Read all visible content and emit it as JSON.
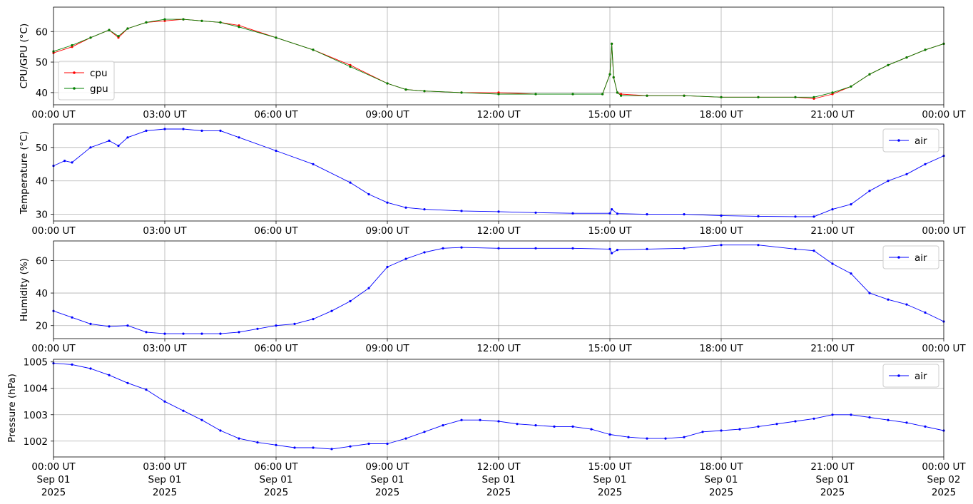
{
  "x_ticks": [
    {
      "time": "00:00 UT",
      "date": "Sep 01",
      "year": "2025"
    },
    {
      "time": "03:00 UT",
      "date": "Sep 01",
      "year": "2025"
    },
    {
      "time": "06:00 UT",
      "date": "Sep 01",
      "year": "2025"
    },
    {
      "time": "09:00 UT",
      "date": "Sep 01",
      "year": "2025"
    },
    {
      "time": "12:00 UT",
      "date": "Sep 01",
      "year": "2025"
    },
    {
      "time": "15:00 UT",
      "date": "Sep 01",
      "year": "2025"
    },
    {
      "time": "18:00 UT",
      "date": "Sep 01",
      "year": "2025"
    },
    {
      "time": "21:00 UT",
      "date": "Sep 01",
      "year": "2025"
    },
    {
      "time": "00:00 UT",
      "date": "Sep 02",
      "year": "2025"
    }
  ],
  "chart_data": [
    {
      "type": "line",
      "title": "",
      "xlabel": "",
      "ylabel": "CPU/GPU (°C)",
      "x_unit": "hours UT since 2025-09-01 00:00",
      "xlim": [
        0,
        24
      ],
      "ylim": [
        36,
        68
      ],
      "yticks": [
        40,
        50,
        60
      ],
      "grid": true,
      "legend": "lower-left",
      "series": [
        {
          "name": "cpu",
          "color": "#ff0000",
          "x": [
            0,
            0.5,
            1,
            1.5,
            1.75,
            2,
            2.5,
            3,
            3.5,
            4,
            4.5,
            5,
            6,
            7,
            8,
            9,
            9.5,
            10,
            11,
            12,
            13,
            14,
            14.8,
            15,
            15.05,
            15.1,
            15.2,
            15.3,
            16,
            17,
            18,
            19,
            20,
            20.5,
            21,
            21.5,
            22,
            22.5,
            23,
            23.5,
            24
          ],
          "y": [
            53,
            55,
            58,
            60.5,
            58,
            61,
            63,
            63.5,
            64,
            63.5,
            63,
            62,
            58,
            54,
            49,
            43,
            41,
            40.5,
            40,
            40,
            39.5,
            39.5,
            39.5,
            46,
            56,
            45,
            40,
            39.5,
            39,
            39,
            38.5,
            38.5,
            38.5,
            38,
            39.5,
            42,
            46,
            49,
            51.5,
            54,
            56
          ]
        },
        {
          "name": "gpu",
          "color": "#008000",
          "x": [
            0,
            0.5,
            1,
            1.5,
            1.75,
            2,
            2.5,
            3,
            3.5,
            4,
            4.5,
            5,
            6,
            7,
            8,
            9,
            9.5,
            10,
            11,
            12,
            13,
            14,
            14.8,
            15,
            15.05,
            15.1,
            15.2,
            15.3,
            16,
            17,
            18,
            19,
            20,
            20.5,
            21,
            21.5,
            22,
            22.5,
            23,
            23.5,
            24
          ],
          "y": [
            53.5,
            55.5,
            58,
            60.5,
            58.5,
            61,
            63,
            64,
            64,
            63.5,
            63,
            61.5,
            58,
            54,
            48.5,
            43,
            41,
            40.5,
            40,
            39.5,
            39.5,
            39.5,
            39.5,
            46,
            56,
            45,
            40,
            39,
            39,
            39,
            38.5,
            38.5,
            38.5,
            38.5,
            40,
            42,
            46,
            49,
            51.5,
            54,
            56
          ]
        }
      ]
    },
    {
      "type": "line",
      "title": "",
      "xlabel": "",
      "ylabel": "Temperature (°C)",
      "x_unit": "hours UT since 2025-09-01 00:00",
      "xlim": [
        0,
        24
      ],
      "ylim": [
        28,
        57
      ],
      "yticks": [
        30,
        40,
        50
      ],
      "grid": true,
      "legend": "upper-right",
      "series": [
        {
          "name": "air",
          "color": "#0000ff",
          "x": [
            0,
            0.3,
            0.5,
            1,
            1.5,
            1.75,
            2,
            2.5,
            3,
            3.5,
            4,
            4.5,
            5,
            6,
            7,
            8,
            8.5,
            9,
            9.5,
            10,
            11,
            12,
            13,
            14,
            15,
            15.05,
            15.2,
            16,
            17,
            18,
            19,
            20,
            20.5,
            21,
            21.5,
            22,
            22.5,
            23,
            23.5,
            24
          ],
          "y": [
            44.5,
            46,
            45.5,
            50,
            52,
            50.5,
            53,
            55,
            55.5,
            55.5,
            55,
            55,
            53,
            49,
            45,
            39.5,
            36,
            33.5,
            32,
            31.5,
            31,
            30.8,
            30.5,
            30.3,
            30.3,
            31.5,
            30.2,
            30,
            30,
            29.6,
            29.4,
            29.3,
            29.3,
            31.5,
            33,
            37,
            40,
            42,
            45,
            47.5
          ]
        }
      ]
    },
    {
      "type": "line",
      "title": "",
      "xlabel": "",
      "ylabel": "Humidity (%)",
      "x_unit": "hours UT since 2025-09-01 00:00",
      "xlim": [
        0,
        24
      ],
      "ylim": [
        12,
        72
      ],
      "yticks": [
        20,
        40,
        60
      ],
      "grid": true,
      "legend": "upper-right",
      "series": [
        {
          "name": "air",
          "color": "#0000ff",
          "x": [
            0,
            0.5,
            1,
            1.5,
            2,
            2.5,
            3,
            3.5,
            4,
            4.5,
            5,
            5.5,
            6,
            6.5,
            7,
            7.5,
            8,
            8.5,
            9,
            9.5,
            10,
            10.5,
            11,
            12,
            13,
            14,
            15,
            15.05,
            15.2,
            16,
            17,
            18,
            19,
            20,
            20.5,
            21,
            21.5,
            22,
            22.5,
            23,
            23.5,
            24
          ],
          "y": [
            29,
            25,
            21,
            19.5,
            20,
            16,
            15,
            15,
            15,
            15,
            16,
            18,
            20,
            21,
            24,
            29,
            35,
            43,
            56,
            61,
            65,
            67.5,
            68,
            67.5,
            67.5,
            67.5,
            67,
            64.5,
            66.5,
            67,
            67.5,
            69.5,
            69.5,
            67,
            66,
            58,
            52,
            40,
            36,
            33,
            28,
            22.5
          ]
        }
      ]
    },
    {
      "type": "line",
      "title": "",
      "xlabel": "",
      "ylabel": "Pressure (hPa)",
      "x_unit": "hours UT since 2025-09-01 00:00",
      "xlim": [
        0,
        24
      ],
      "ylim": [
        1001.4,
        1005.1
      ],
      "yticks": [
        1002,
        1003,
        1004,
        1005
      ],
      "grid": true,
      "legend": "upper-right",
      "series": [
        {
          "name": "air",
          "color": "#0000ff",
          "x": [
            0,
            0.5,
            1,
            1.5,
            2,
            2.5,
            3,
            3.5,
            4,
            4.5,
            5,
            5.5,
            6,
            6.5,
            7,
            7.5,
            8,
            8.5,
            9,
            9.5,
            10,
            10.5,
            11,
            11.5,
            12,
            12.5,
            13,
            13.5,
            14,
            14.5,
            15,
            15.5,
            16,
            16.5,
            17,
            17.5,
            18,
            18.5,
            19,
            19.5,
            20,
            20.5,
            21,
            21.5,
            22,
            22.5,
            23,
            23.5,
            24
          ],
          "y": [
            1004.95,
            1004.9,
            1004.75,
            1004.5,
            1004.2,
            1003.95,
            1003.5,
            1003.15,
            1002.8,
            1002.4,
            1002.1,
            1001.95,
            1001.85,
            1001.75,
            1001.75,
            1001.7,
            1001.8,
            1001.9,
            1001.9,
            1002.1,
            1002.35,
            1002.6,
            1002.8,
            1002.8,
            1002.75,
            1002.65,
            1002.6,
            1002.55,
            1002.55,
            1002.45,
            1002.25,
            1002.15,
            1002.1,
            1002.1,
            1002.15,
            1002.35,
            1002.4,
            1002.45,
            1002.55,
            1002.65,
            1002.75,
            1002.85,
            1003.0,
            1003.0,
            1002.9,
            1002.8,
            1002.7,
            1002.55,
            1002.4
          ]
        }
      ]
    }
  ]
}
